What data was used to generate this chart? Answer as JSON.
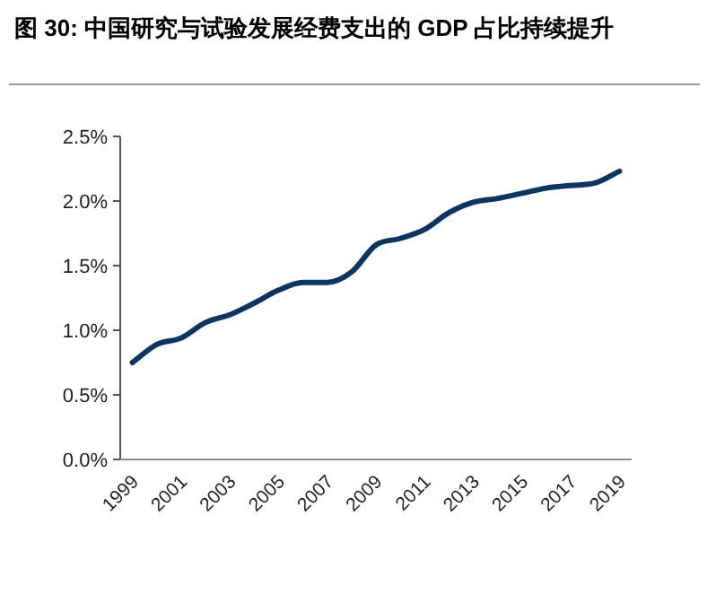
{
  "chart_data": {
    "type": "line",
    "title": "图 30: 中国研究与试验发展经费支出的 GDP 占比持续提升",
    "categories": [
      "1999",
      null,
      "2001",
      null,
      "2003",
      null,
      "2005",
      null,
      "2007",
      null,
      "2009",
      null,
      "2011",
      null,
      "2013",
      null,
      "2015",
      null,
      "2017",
      null,
      "2019"
    ],
    "series": [
      {
        "color": "#0b3563",
        "values": [
          0.75,
          0.89,
          0.94,
          1.06,
          1.12,
          1.21,
          1.31,
          1.37,
          1.37,
          1.45,
          1.66,
          1.71,
          1.78,
          1.91,
          1.99,
          2.02,
          2.06,
          2.1,
          2.12,
          2.14,
          2.23
        ]
      }
    ],
    "ylim": [
      0,
      2.5
    ],
    "yticks": [
      {
        "value": 0,
        "label": "0.0%"
      },
      {
        "value": 0.5,
        "label": "0.5%"
      },
      {
        "value": 1,
        "label": "1.0%"
      },
      {
        "value": 1.5,
        "label": "1.5%"
      },
      {
        "value": 2,
        "label": "2.0%"
      },
      {
        "value": 2.5,
        "label": "2.5%"
      }
    ],
    "grid": false,
    "marker": "none",
    "line_style": "solid"
  }
}
